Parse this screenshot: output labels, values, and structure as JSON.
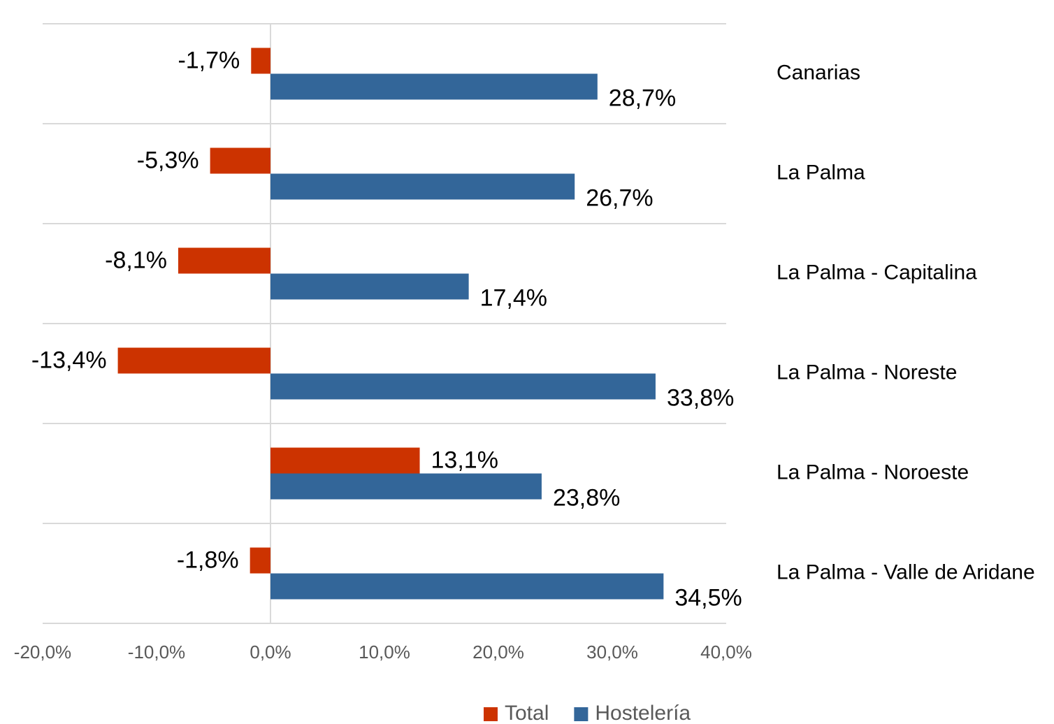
{
  "chart_data": {
    "type": "hbar",
    "categories": [
      "Canarias",
      "La Palma",
      "La Palma - Capitalina",
      "La Palma - Noreste",
      "La Palma - Noroeste",
      "La Palma - Valle de Aridane"
    ],
    "series": [
      {
        "name": "Total",
        "color": "#cc3300",
        "values": [
          -1.7,
          -5.3,
          -8.1,
          -13.4,
          13.1,
          -1.8
        ],
        "value_labels": [
          "-1,7%",
          "-5,3%",
          "-8,1%",
          "-13,4%",
          "13,1%",
          "-1,8%"
        ]
      },
      {
        "name": "Hostelería",
        "color": "#336699",
        "values": [
          28.7,
          26.7,
          17.4,
          33.8,
          23.8,
          34.5
        ],
        "value_labels": [
          "28,7%",
          "26,7%",
          "17,4%",
          "33,8%",
          "23,8%",
          "34,5%"
        ]
      }
    ],
    "xlim": [
      -20,
      40
    ],
    "xticks": [
      {
        "value": -20,
        "label": "-20,0%"
      },
      {
        "value": -10,
        "label": "-10,0%"
      },
      {
        "value": 0,
        "label": "0,0%"
      },
      {
        "value": 10,
        "label": "10,0%"
      },
      {
        "value": 20,
        "label": "20,0%"
      },
      {
        "value": 30,
        "label": "30,0%"
      },
      {
        "value": 40,
        "label": "40,0%"
      }
    ],
    "legend": "bottom"
  }
}
